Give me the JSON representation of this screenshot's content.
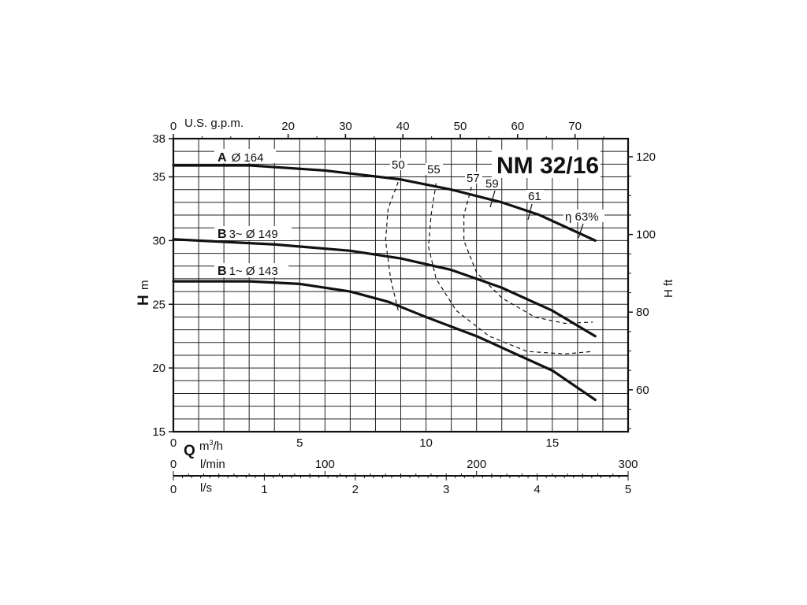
{
  "chart_data": {
    "type": "line",
    "title": "NM 32/16",
    "x_primary": {
      "label": "Q",
      "unit": "m³/h",
      "range": [
        0,
        18
      ],
      "ticks": [
        0,
        5,
        10,
        15
      ]
    },
    "x_top": {
      "label": "U.S. g.p.m.",
      "ticks": [
        0,
        20,
        30,
        40,
        50,
        60,
        70
      ]
    },
    "x_lmin": {
      "label": "l/min",
      "ticks": [
        0,
        100,
        200,
        300
      ]
    },
    "x_ls": {
      "label": "l/s",
      "ticks": [
        0,
        1,
        2,
        3,
        4,
        5
      ]
    },
    "y_primary": {
      "label": "H",
      "unit": "m",
      "range": [
        15,
        38
      ],
      "ticks": [
        15,
        20,
        25,
        30,
        35,
        38
      ]
    },
    "y_secondary": {
      "label": "H ft",
      "ticks": [
        60,
        80,
        100,
        120
      ]
    },
    "grid": true,
    "series": [
      {
        "name": "A Ø 164",
        "letter": "A",
        "text": "Ø 164",
        "x": [
          0,
          3,
          6,
          9,
          11,
          13,
          14.5,
          16.7
        ],
        "y": [
          35.9,
          35.9,
          35.5,
          34.8,
          34.0,
          33.0,
          32.0,
          30.0
        ]
      },
      {
        "name": "B 3~ Ø 149",
        "letter": "B",
        "text": "3~ Ø 149",
        "x": [
          0,
          4,
          7,
          9,
          11,
          13,
          15,
          16.7
        ],
        "y": [
          30.1,
          29.7,
          29.2,
          28.6,
          27.7,
          26.3,
          24.5,
          22.5
        ]
      },
      {
        "name": "B 1~ Ø 143",
        "letter": "B",
        "text": "1~ Ø 143",
        "x": [
          0,
          3,
          5,
          7,
          8.5,
          10,
          12,
          15,
          16.7
        ],
        "y": [
          26.8,
          26.8,
          26.6,
          26.0,
          25.2,
          24.0,
          22.5,
          19.8,
          17.5
        ]
      }
    ],
    "efficiency_curves": [
      {
        "label": "50",
        "x": [
          8.9,
          8.5,
          8.4,
          8.6,
          8.9
        ],
        "y": [
          34.6,
          32.5,
          30.0,
          27.0,
          24.5
        ]
      },
      {
        "label": "55",
        "x": [
          10.4,
          10.2,
          10.1,
          10.4,
          11.2,
          12.5,
          14.0,
          15.5,
          16.6
        ],
        "y": [
          34.5,
          32.0,
          29.5,
          27.0,
          24.5,
          22.5,
          21.3,
          21.1,
          21.3
        ]
      },
      {
        "label": "57",
        "x": [
          11.8,
          11.5,
          11.5,
          12.0,
          13.0,
          14.3,
          15.5,
          16.6
        ],
        "y": [
          34.2,
          32.0,
          30.0,
          27.5,
          25.5,
          24.0,
          23.5,
          23.6
        ]
      },
      {
        "label": "59"
      },
      {
        "label": "61"
      },
      {
        "label": "η 63%"
      }
    ]
  },
  "labels": {
    "title": "NM 32/16",
    "top_axis": "U.S. g.p.m.",
    "y_letter": "H",
    "y_unit": "m",
    "y_right": "H ft",
    "q_letter": "Q",
    "q_unit_main": "m",
    "q_unit_sup": "3",
    "q_unit_tail": "/h",
    "lmin": "l/min",
    "ls": "l/s",
    "curve_a_letter": "A",
    "curve_a_text": "Ø 164",
    "curve_b3_letter": "B",
    "curve_b3_text": "3~ Ø 149",
    "curve_b1_letter": "B",
    "curve_b1_text": "1~ Ø 143",
    "eff_50": "50",
    "eff_55": "55",
    "eff_57": "57",
    "eff_59": "59",
    "eff_61": "61",
    "eff_63": "η 63%"
  }
}
